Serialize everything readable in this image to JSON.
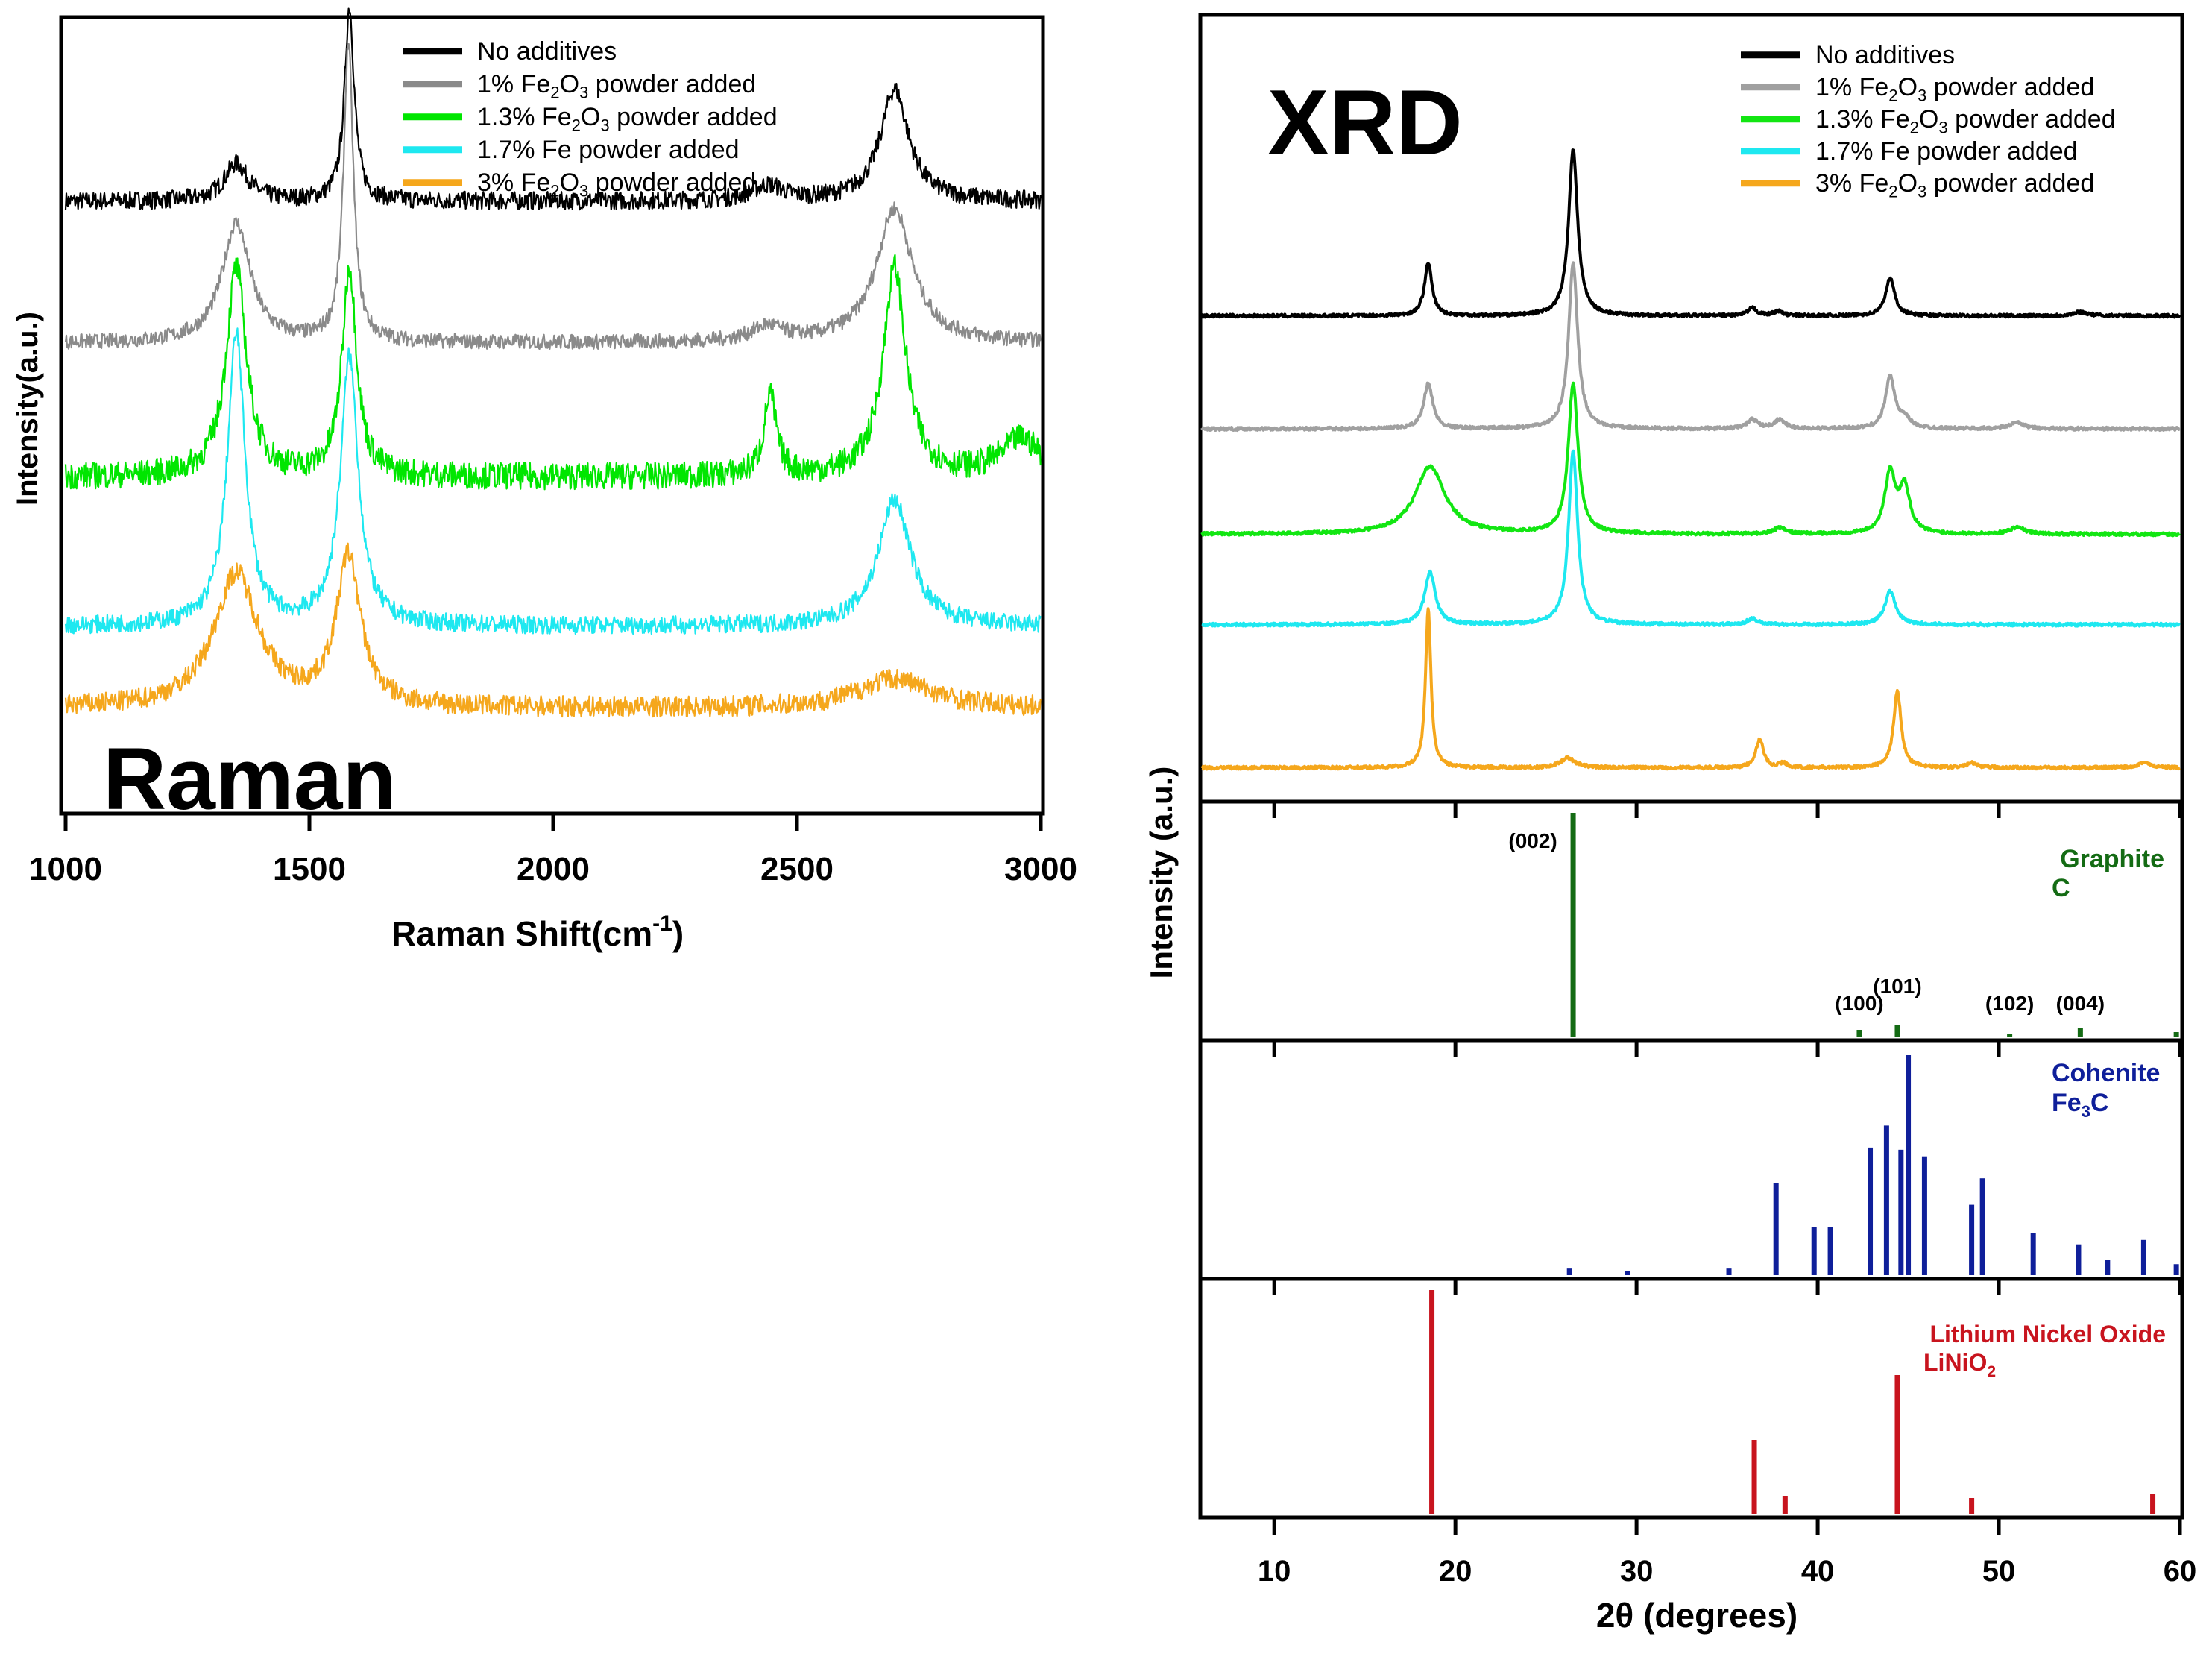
{
  "chart_data": [
    {
      "type": "line",
      "label": "Raman",
      "xlabel": "Raman Shift(cm",
      "xlabel_sup": "-1",
      "xlabel_close": ")",
      "ylabel": "Intensity(a.u.)",
      "xlim": [
        1000,
        3000
      ],
      "x_ticks": [
        1000,
        1500,
        2000,
        2500,
        3000
      ],
      "x_tick_labels": [
        "1000",
        "1500",
        "2000",
        "2500",
        "3000"
      ],
      "legend_position": "top-right",
      "legend": [
        {
          "pre": "No additives",
          "sub": "",
          "post": ""
        },
        {
          "pre": "1% Fe",
          "sub": "2",
          "mid": "O",
          "sub2": "3",
          "post": " powder added"
        },
        {
          "pre": "1.3% Fe",
          "sub": "2",
          "mid": "O",
          "sub2": "3",
          "post": " powder added"
        },
        {
          "pre": "1.7% Fe powder added",
          "sub": "",
          "post": ""
        },
        {
          "pre": "3% Fe",
          "sub": "2",
          "mid": "O",
          "sub2": "3",
          "post": " powder added"
        }
      ],
      "series": [
        {
          "name": "No additives",
          "color": "#000000",
          "baseline": 0.79,
          "noise": 0.012,
          "peaks": [
            [
              1350,
              30,
              0.05
            ],
            [
              1582,
              12,
              0.26
            ],
            [
              2440,
              40,
              0.02
            ],
            [
              2700,
              35,
              0.15
            ]
          ]
        },
        {
          "name": "1% Fe2O3 powder added",
          "color": "#8a8a8a",
          "baseline": 0.6,
          "noise": 0.01,
          "peaks": [
            [
              1350,
              35,
              0.16
            ],
            [
              1580,
              12,
              0.4
            ],
            [
              2440,
              40,
              0.02
            ],
            [
              2700,
              45,
              0.18
            ]
          ]
        },
        {
          "name": "1.3% Fe2O3 powder added",
          "color": "#00e600",
          "baseline": 0.42,
          "noise": 0.018,
          "peaks": [
            [
              1350,
              25,
              0.28
            ],
            [
              1582,
              18,
              0.28
            ],
            [
              2445,
              15,
              0.11
            ],
            [
              2700,
              28,
              0.28
            ],
            [
              2960,
              50,
              0.05
            ]
          ]
        },
        {
          "name": "1.7% Fe powder added",
          "color": "#1ee8f0",
          "baseline": 0.22,
          "noise": 0.012,
          "peaks": [
            [
              1350,
              22,
              0.39
            ],
            [
              1582,
              22,
              0.36
            ],
            [
              2700,
              40,
              0.17
            ]
          ]
        },
        {
          "name": "3% Fe2O3 powder added",
          "color": "#f5a71c",
          "baseline": 0.11,
          "noise": 0.014,
          "peaks": [
            [
              1350,
              55,
              0.18
            ],
            [
              1580,
              30,
              0.2
            ],
            [
              2700,
              90,
              0.04
            ]
          ]
        }
      ],
      "title_text": "Raman"
    },
    {
      "type": "line",
      "label": "XRD",
      "xlabel": "2θ (degrees)",
      "ylabel": "Intensity (a.u.)",
      "xlim": [
        6,
        60
      ],
      "x_ticks": [
        10,
        20,
        30,
        40,
        50,
        60
      ],
      "x_tick_labels": [
        "10",
        "20",
        "30",
        "40",
        "50",
        "60"
      ],
      "legend_position": "top-right",
      "legend": [
        {
          "pre": "No additives",
          "sub": "",
          "post": ""
        },
        {
          "pre": "1% Fe",
          "sub": "2",
          "mid": "O",
          "sub2": "3",
          "post": " powder added"
        },
        {
          "pre": "1.3% Fe",
          "sub": "2",
          "mid": "O",
          "sub2": "3",
          "post": " powder added"
        },
        {
          "pre": "1.7% Fe powder added",
          "sub": "",
          "post": ""
        },
        {
          "pre": "3% Fe",
          "sub": "2",
          "mid": "O",
          "sub2": "3",
          "post": " powder added"
        }
      ],
      "series": [
        {
          "name": "No additives",
          "color": "#000000",
          "baseline": 0.64,
          "noise": 0.002,
          "peaks": [
            [
              18.5,
              0.25,
              0.07
            ],
            [
              26.5,
              0.3,
              0.22
            ],
            [
              36.4,
              0.3,
              0.01
            ],
            [
              37.8,
              0.3,
              0.006
            ],
            [
              44.0,
              0.3,
              0.05
            ],
            [
              54.5,
              0.5,
              0.005
            ]
          ]
        },
        {
          "name": "1% Fe2O3 powder added",
          "color": "#a0a0a0",
          "baseline": 0.49,
          "noise": 0.002,
          "peaks": [
            [
              18.5,
              0.3,
              0.06
            ],
            [
              26.5,
              0.3,
              0.22
            ],
            [
              36.4,
              0.35,
              0.012
            ],
            [
              37.9,
              0.35,
              0.012
            ],
            [
              44.0,
              0.3,
              0.07
            ],
            [
              44.8,
              0.4,
              0.012
            ],
            [
              51.0,
              0.5,
              0.008
            ]
          ]
        },
        {
          "name": "1.3% Fe2O3 powder added",
          "color": "#12e612",
          "baseline": 0.35,
          "noise": 0.002,
          "peaks": [
            [
              18.6,
              1.0,
              0.09
            ],
            [
              26.5,
              0.32,
              0.2
            ],
            [
              37.9,
              0.4,
              0.008
            ],
            [
              44.0,
              0.35,
              0.08
            ],
            [
              44.8,
              0.35,
              0.06
            ],
            [
              51.0,
              0.5,
              0.009
            ]
          ]
        },
        {
          "name": "1.7% Fe powder added",
          "color": "#1ee8f0",
          "baseline": 0.23,
          "noise": 0.002,
          "peaks": [
            [
              18.6,
              0.35,
              0.07
            ],
            [
              26.5,
              0.3,
              0.23
            ],
            [
              36.4,
              0.35,
              0.008
            ],
            [
              44.0,
              0.35,
              0.045
            ]
          ]
        },
        {
          "name": "3% Fe2O3 powder added",
          "color": "#f5a71c",
          "baseline": 0.04,
          "noise": 0.002,
          "peaks": [
            [
              18.5,
              0.18,
              0.21
            ],
            [
              26.2,
              0.5,
              0.013
            ],
            [
              36.8,
              0.25,
              0.038
            ],
            [
              38.1,
              0.25,
              0.006
            ],
            [
              44.4,
              0.25,
              0.102
            ],
            [
              48.5,
              0.35,
              0.006
            ],
            [
              58.0,
              0.4,
              0.007
            ]
          ]
        }
      ],
      "title_text": "XRD"
    },
    {
      "type": "bar",
      "label": "Graphite reference",
      "name": "Graphite",
      "formula": "C",
      "color": "#146b14",
      "xlim": [
        6,
        60
      ],
      "x": [
        26.5,
        42.3,
        44.4,
        50.6,
        54.5,
        59.8
      ],
      "values": [
        1.0,
        0.03,
        0.05,
        0.01,
        0.04,
        0.02
      ],
      "annotations": [
        {
          "text": "(002)",
          "x": 26.5
        },
        {
          "text": "(100)",
          "x": 42.3
        },
        {
          "text": "(101)",
          "x": 44.4
        },
        {
          "text": "(102)",
          "x": 50.6
        },
        {
          "text": "(004)",
          "x": 54.5
        }
      ]
    },
    {
      "type": "bar",
      "label": "Cohenite reference",
      "name": "Cohenite",
      "formula_pre": "Fe",
      "formula_sub": "3",
      "formula_post": "C",
      "color": "#0f1f9a",
      "xlim": [
        6,
        60
      ],
      "x": [
        26.3,
        29.5,
        35.1,
        37.7,
        39.8,
        40.7,
        42.9,
        43.8,
        44.6,
        45.0,
        45.9,
        48.5,
        49.1,
        51.9,
        54.4,
        56.0,
        58.0,
        59.8
      ],
      "values": [
        0.03,
        0.02,
        0.03,
        0.42,
        0.22,
        0.22,
        0.58,
        0.68,
        0.57,
        1.0,
        0.54,
        0.32,
        0.44,
        0.19,
        0.14,
        0.07,
        0.16,
        0.05
      ]
    },
    {
      "type": "bar",
      "label": "Lithium nickel oxide reference",
      "name": "Lithium Nickel Oxide",
      "formula_pre": "LiNiO",
      "formula_sub": "2",
      "formula_post": "",
      "color": "#c8141e",
      "xlim": [
        6,
        60
      ],
      "x": [
        18.7,
        36.5,
        38.2,
        44.4,
        48.5,
        58.5
      ],
      "values": [
        1.0,
        0.33,
        0.08,
        0.62,
        0.07,
        0.09
      ]
    }
  ]
}
